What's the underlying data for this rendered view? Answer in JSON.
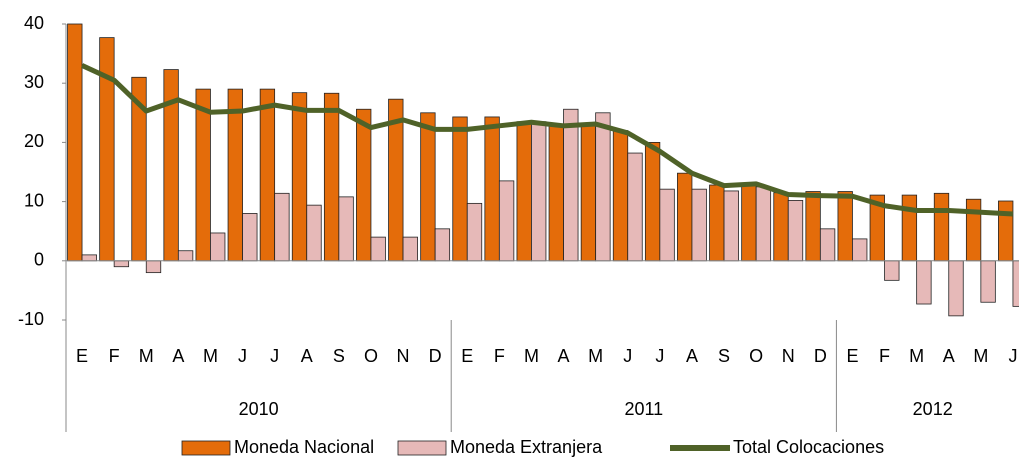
{
  "chart_data": {
    "type": "bar_line",
    "categories": [
      "E",
      "F",
      "M",
      "A",
      "M",
      "J",
      "J",
      "A",
      "S",
      "O",
      "N",
      "D",
      "E",
      "F",
      "M",
      "A",
      "M",
      "J",
      "J",
      "A",
      "S",
      "O",
      "N",
      "D",
      "E",
      "F",
      "M",
      "A",
      "M",
      "J"
    ],
    "groups": [
      "2010",
      "2011",
      "2012"
    ],
    "series": [
      {
        "name": "Moneda Nacional",
        "type": "bar",
        "color": "#e46c0a",
        "values": [
          40,
          37.7,
          31,
          32.3,
          29,
          29,
          29,
          28.4,
          28.3,
          25.6,
          27.3,
          25,
          24.3,
          24.3,
          23.5,
          23,
          23,
          22,
          20,
          14.8,
          12.8,
          13,
          11.5,
          11.7,
          11.7,
          11.1,
          11.1,
          11.4,
          10.4,
          10.1
        ]
      },
      {
        "name": "Moneda Extranjera",
        "type": "bar",
        "color": "#e6b9b8",
        "values": [
          1,
          -1,
          -2,
          1.7,
          4.7,
          8,
          11.4,
          9.4,
          10.8,
          4,
          4,
          5.4,
          9.7,
          13.5,
          23.5,
          25.6,
          25,
          18.2,
          12.1,
          12.1,
          11.8,
          12.5,
          10.2,
          5.4,
          3.7,
          -3.3,
          -7.3,
          -9.3,
          -7,
          -7.7
        ]
      },
      {
        "name": "Total Colocaciones",
        "type": "line",
        "color": "#4f6228",
        "values": [
          33,
          30.5,
          25.3,
          27.2,
          25.1,
          25.3,
          26.3,
          25.4,
          25.4,
          22.5,
          23.8,
          22.2,
          22.2,
          22.8,
          23.4,
          22.8,
          23.1,
          21.6,
          18.5,
          14.8,
          12.7,
          13,
          11.2,
          11,
          10.9,
          9.3,
          8.5,
          8.5,
          8.2,
          7.9
        ]
      }
    ],
    "ylim": [
      -10,
      40
    ],
    "yticks": [
      -10,
      0,
      10,
      20,
      30,
      40
    ],
    "legend": "bottom"
  }
}
